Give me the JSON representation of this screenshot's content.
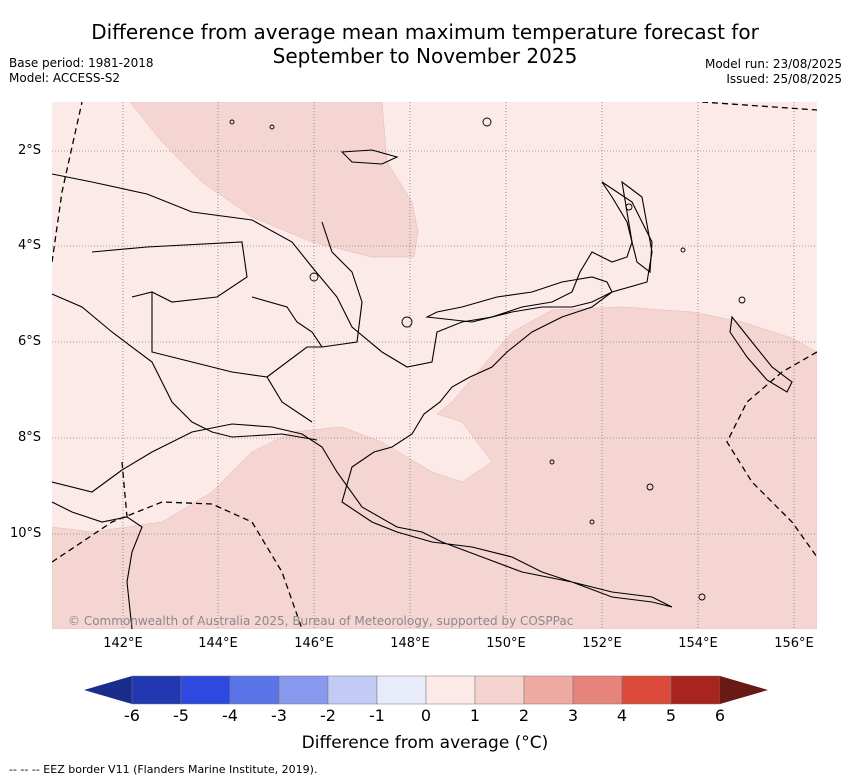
{
  "title": {
    "line1": "Difference from average mean maximum temperature forecast for",
    "line2": "September to November 2025"
  },
  "meta_left": {
    "base_period": "Base period: 1981-2018",
    "model": "Model: ACCESS-S2"
  },
  "meta_right": {
    "model_run": "Model run: 23/08/2025",
    "issued": "Issued: 25/08/2025"
  },
  "lat_labels": [
    "2°S",
    "4°S",
    "6°S",
    "8°S",
    "10°S"
  ],
  "lon_labels": [
    "142°E",
    "144°E",
    "146°E",
    "148°E",
    "150°E",
    "152°E",
    "154°E",
    "156°E"
  ],
  "copyright": "© Commonwealth of Australia 2025, Bureau of Meteorology, supported by COSPPac",
  "colorbar": {
    "ticks": [
      "-6",
      "-5",
      "-4",
      "-3",
      "-2",
      "-1",
      "0",
      "1",
      "2",
      "3",
      "4",
      "5",
      "6"
    ],
    "colors": [
      "#1a2d8c",
      "#2238b0",
      "#2e49e0",
      "#5a73e6",
      "#8898ec",
      "#c2cbf5",
      "#e8ecfa",
      "#fbeae8",
      "#f5d3cf",
      "#efaaa3",
      "#e6837a",
      "#dc4a3c",
      "#a8241f",
      "#6a1a14"
    ],
    "label": "Difference from average (°C)"
  },
  "map_colors": {
    "pale": "#fbeae8",
    "light": "#f5d5d2",
    "land_border": "#000000"
  },
  "footnote": "-- -- -- EEZ border V11 (Flanders Marine Institute, 2019)."
}
